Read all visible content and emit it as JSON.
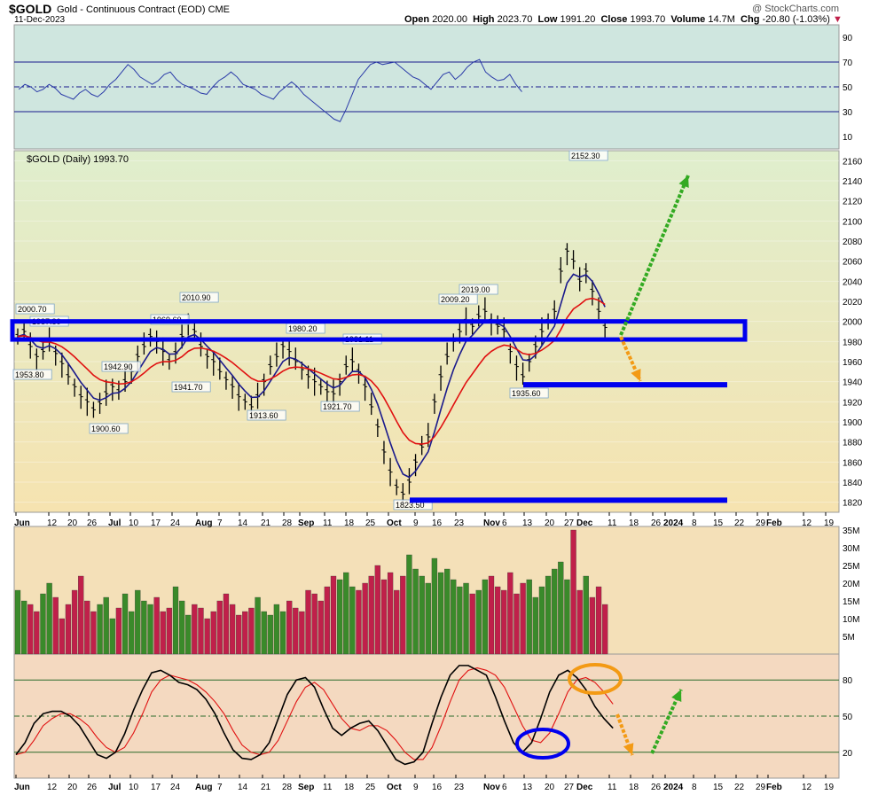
{
  "header": {
    "symbol": "$GOLD",
    "description": "Gold - Continuous Contract (EOD)",
    "exchange": "CME",
    "date": "11-Dec-2023",
    "watermark": "@ StockCharts.com",
    "open_label": "Open",
    "open": "2020.00",
    "high_label": "High",
    "high": "2023.70",
    "low_label": "Low",
    "low": "1991.20",
    "close_label": "Close",
    "close": "1993.70",
    "volume_label": "Volume",
    "volume": "14.7M",
    "chg_label": "Chg",
    "chg": "-20.80 (-1.03%)"
  },
  "price_legend": "$GOLD (Daily) 1993.70",
  "colors": {
    "rsi_bg": "#cfe6df",
    "price_bg_top": "#dfeecd",
    "price_bg_bottom": "#f6e3b0",
    "volume_bg": "#f4e0b8",
    "stoch_bg": "#f4d9c0",
    "up": "#3a8a2a",
    "down": "#c0204a",
    "ma_fast": "#1a1a8c",
    "ma_slow": "#e01010",
    "box": "#0000ee",
    "green_arrow": "#33aa22",
    "orange_arrow": "#f39a14"
  },
  "chart_data": [
    {
      "type": "line",
      "name": "rsi-panel",
      "y_ticks": [
        "90",
        "70",
        "50",
        "30",
        "10"
      ],
      "ylim": [
        0,
        100
      ],
      "reference_lines": [
        70,
        50,
        30
      ],
      "values": [
        48,
        52,
        50,
        46,
        48,
        52,
        49,
        44,
        42,
        40,
        45,
        48,
        44,
        42,
        46,
        52,
        56,
        62,
        68,
        64,
        58,
        55,
        52,
        55,
        60,
        62,
        56,
        52,
        50,
        48,
        45,
        44,
        50,
        55,
        58,
        62,
        58,
        52,
        50,
        48,
        44,
        42,
        40,
        46,
        50,
        54,
        50,
        44,
        40,
        36,
        32,
        28,
        24,
        22,
        32,
        44,
        56,
        62,
        68,
        70,
        68,
        69,
        70,
        66,
        62,
        58,
        56,
        52,
        48,
        54,
        60,
        62,
        56,
        60,
        66,
        70,
        72,
        62,
        58,
        55,
        56,
        60,
        52,
        46
      ]
    },
    {
      "type": "bar",
      "name": "price-panel-ohlc",
      "x_labels": [
        "Jun",
        "12",
        "20",
        "26",
        "Jul",
        "10",
        "17",
        "24",
        "Aug",
        "7",
        "14",
        "21",
        "28",
        "Sep",
        "11",
        "18",
        "25",
        "Oct",
        "9",
        "16",
        "23",
        "Nov",
        "6",
        "13",
        "20",
        "27",
        "Dec",
        "11",
        "18",
        "26",
        "2024",
        "8",
        "15",
        "22",
        "29",
        "Feb",
        "12",
        "19"
      ],
      "y_ticks": [
        "2160",
        "2140",
        "2120",
        "2100",
        "2080",
        "2060",
        "2040",
        "2020",
        "2000",
        "1980",
        "1960",
        "1940",
        "1920",
        "1900",
        "1880",
        "1860",
        "1840",
        "1820"
      ],
      "ylim": [
        1810,
        2170
      ],
      "close": [
        1985,
        1990,
        1975,
        1965,
        1970,
        1980,
        1968,
        1958,
        1945,
        1935,
        1925,
        1920,
        1912,
        1918,
        1928,
        1935,
        1930,
        1940,
        1950,
        1965,
        1975,
        1985,
        1980,
        1970,
        1960,
        1968,
        1985,
        2000,
        1990,
        1975,
        1965,
        1960,
        1950,
        1942,
        1935,
        1925,
        1920,
        1915,
        1925,
        1940,
        1955,
        1965,
        1975,
        1970,
        1960,
        1952,
        1945,
        1940,
        1935,
        1930,
        1928,
        1940,
        1955,
        1960,
        1950,
        1935,
        1915,
        1895,
        1870,
        1850,
        1835,
        1828,
        1840,
        1860,
        1875,
        1885,
        1920,
        1945,
        1965,
        1980,
        1990,
        2000,
        1995,
        2005,
        2010,
        2000,
        1995,
        1990,
        1970,
        1955,
        1945,
        1960,
        1975,
        1990,
        2000,
        2010,
        2050,
        2070,
        2060,
        2040,
        2050,
        2030,
        2010,
        1994
      ],
      "labels": [
        {
          "text": "2000.70"
        },
        {
          "text": "1987.80"
        },
        {
          "text": "1953.80"
        },
        {
          "text": "1942.90"
        },
        {
          "text": "1900.60"
        },
        {
          "text": "1969.60"
        },
        {
          "text": "2010.90"
        },
        {
          "text": "1941.70"
        },
        {
          "text": "1913.60"
        },
        {
          "text": "1980.20"
        },
        {
          "text": "1931.11"
        },
        {
          "text": "1921.70"
        },
        {
          "text": "1823.50"
        },
        {
          "text": "2009.20"
        },
        {
          "text": "2019.00"
        },
        {
          "text": "1935.60"
        },
        {
          "text": "2152.30"
        }
      ],
      "horizontal_levels": [
        1982,
        1998,
        1937,
        1822
      ]
    },
    {
      "type": "bar",
      "name": "volume-panel",
      "y_ticks": [
        "35M",
        "30M",
        "25M",
        "20M",
        "15M",
        "10M",
        "5M"
      ],
      "ylim": [
        0,
        36
      ],
      "values": [
        18,
        15,
        14,
        12,
        17,
        20,
        16,
        10,
        14,
        18,
        22,
        15,
        12,
        14,
        16,
        10,
        13,
        17,
        12,
        18,
        15,
        14,
        16,
        12,
        13,
        19,
        15,
        11,
        14,
        13,
        10,
        12,
        15,
        17,
        14,
        11,
        12,
        13,
        16,
        12,
        11,
        14,
        12,
        15,
        13,
        12,
        18,
        17,
        15,
        19,
        22,
        21,
        23,
        19,
        18,
        20,
        22,
        25,
        21,
        23,
        18,
        22,
        28,
        24,
        22,
        20,
        27,
        23,
        24,
        21,
        19,
        20,
        17,
        18,
        21,
        22,
        19,
        18,
        23,
        17,
        20,
        21,
        16,
        19,
        22,
        24,
        26,
        21,
        35,
        18,
        22,
        16,
        19,
        14
      ]
    },
    {
      "type": "line",
      "name": "stochastics-panel",
      "y_ticks": [
        "80",
        "50",
        "20"
      ],
      "ylim": [
        0,
        100
      ],
      "reference_lines": [
        80,
        50,
        20
      ],
      "k": [
        18,
        28,
        44,
        52,
        54,
        54,
        50,
        42,
        30,
        18,
        15,
        20,
        35,
        55,
        72,
        86,
        88,
        84,
        78,
        76,
        72,
        64,
        52,
        36,
        22,
        15,
        14,
        18,
        28,
        48,
        68,
        80,
        82,
        74,
        56,
        40,
        34,
        40,
        44,
        46,
        38,
        26,
        14,
        10,
        12,
        20,
        44,
        66,
        84,
        92,
        92,
        88,
        84,
        66,
        46,
        28,
        20,
        28,
        48,
        70,
        84,
        88,
        82,
        72,
        58,
        48,
        40
      ],
      "d": [
        18,
        20,
        30,
        42,
        48,
        52,
        52,
        48,
        42,
        32,
        24,
        20,
        24,
        36,
        52,
        70,
        80,
        84,
        82,
        80,
        76,
        70,
        62,
        52,
        38,
        26,
        20,
        18,
        20,
        30,
        46,
        62,
        74,
        78,
        72,
        60,
        48,
        40,
        38,
        42,
        42,
        38,
        30,
        20,
        14,
        14,
        24,
        42,
        62,
        80,
        88,
        90,
        88,
        84,
        74,
        58,
        42,
        30,
        28,
        36,
        52,
        70,
        80,
        82,
        78,
        70,
        60
      ]
    }
  ]
}
